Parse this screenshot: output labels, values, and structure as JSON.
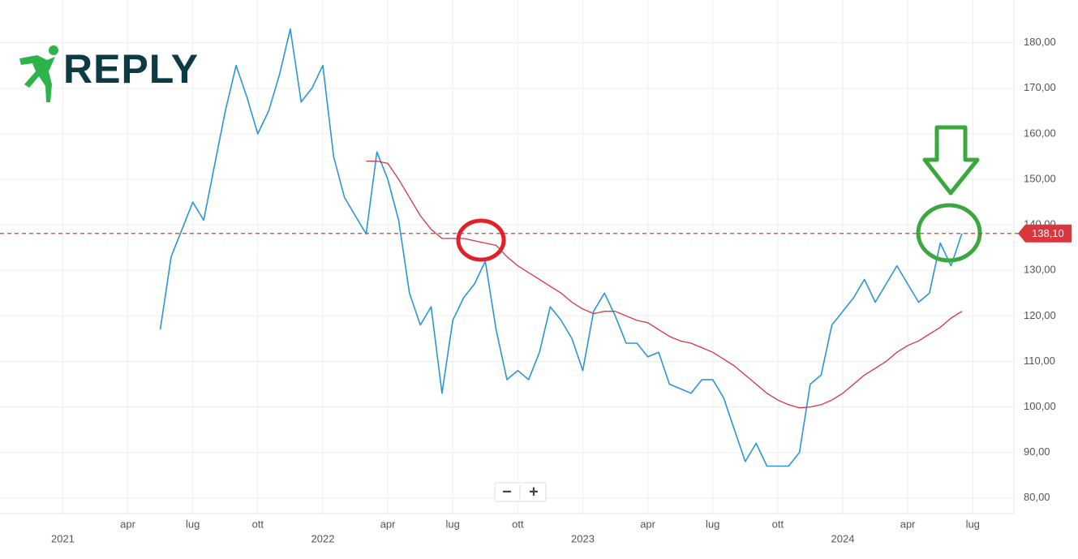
{
  "logo": "REPLY",
  "zoom_controls": [
    "−",
    "+"
  ],
  "chart_data": {
    "type": "line",
    "x": [
      4.5,
      5,
      5.5,
      6,
      6.5,
      7,
      7.5,
      8,
      8.5,
      9,
      9.5,
      10,
      10.5,
      11,
      11.5,
      12,
      12.5,
      13,
      13.5,
      14,
      14.5,
      15,
      15.5,
      16,
      16.5,
      17,
      17.5,
      18,
      18.5,
      19,
      19.5,
      20,
      20.5,
      21,
      21.5,
      22,
      22.5,
      23,
      23.5,
      24,
      24.5,
      25,
      25.5,
      26,
      26.5,
      27,
      27.5,
      28,
      28.5,
      29,
      29.5,
      30,
      30.5,
      31,
      31.5,
      32,
      32.5,
      33,
      33.5,
      34,
      34.5,
      35,
      35.5,
      36,
      36.5,
      37,
      37.5,
      38,
      38.5,
      39,
      39.5,
      40,
      40.5,
      41,
      41.5
    ],
    "series": [
      {
        "color": "#2b95d6",
        "values": [
          117,
          133,
          139,
          145,
          141,
          153,
          165,
          175,
          168,
          160,
          165,
          173,
          183,
          167,
          170,
          175,
          155,
          146,
          142,
          138,
          156,
          150,
          141,
          125,
          118,
          122,
          103,
          119,
          124,
          127,
          132,
          117,
          106,
          108,
          106,
          112,
          122,
          119,
          115,
          108,
          121,
          125,
          120,
          114,
          114,
          111,
          112,
          105,
          104,
          103,
          106,
          106,
          102,
          95,
          88,
          92,
          87,
          87,
          87,
          90,
          105,
          107,
          118,
          121,
          124,
          128,
          123,
          127,
          131,
          127,
          123,
          125,
          136,
          131,
          138.1
        ]
      },
      {
        "color": "#d9343f",
        "values": [
          null,
          null,
          null,
          null,
          null,
          null,
          null,
          null,
          null,
          null,
          null,
          null,
          null,
          null,
          null,
          null,
          null,
          null,
          null,
          154,
          154,
          153.5,
          150,
          146,
          142,
          139,
          137,
          137,
          137,
          136.5,
          136,
          135.5,
          133,
          131,
          129.5,
          128,
          126.5,
          125,
          123,
          121.5,
          120.5,
          121,
          121,
          120,
          119,
          118.5,
          117,
          115.5,
          114.5,
          114,
          113,
          112,
          110.5,
          109,
          107,
          105,
          103,
          101.5,
          100.5,
          99.8,
          100,
          100.5,
          101.5,
          103,
          105,
          107,
          108.5,
          110,
          112,
          113.5,
          114.5,
          116,
          117.5,
          119.5,
          121
        ]
      }
    ],
    "last_price": {
      "value": 138.1,
      "label": "138,10",
      "color": "#d9363e"
    },
    "xlim": [
      -2.9,
      43.9
    ],
    "xticks": [
      {
        "value": 3,
        "label": "apr"
      },
      {
        "value": 6,
        "label": "lug"
      },
      {
        "value": 9,
        "label": "ott"
      },
      {
        "value": 15,
        "label": "apr"
      },
      {
        "value": 18,
        "label": "lug"
      },
      {
        "value": 21,
        "label": "ott"
      },
      {
        "value": 27,
        "label": "apr"
      },
      {
        "value": 30,
        "label": "lug"
      },
      {
        "value": 33,
        "label": "ott"
      },
      {
        "value": 39,
        "label": "apr"
      },
      {
        "value": 42,
        "label": "lug"
      }
    ],
    "xticks_major": [
      {
        "value": 0,
        "label": "2021"
      },
      {
        "value": 12,
        "label": "2022"
      },
      {
        "value": 24,
        "label": "2023"
      },
      {
        "value": 36,
        "label": "2024"
      }
    ],
    "ylim": [
      78,
      186
    ],
    "yticks": [
      {
        "value": 80,
        "label": "80,00"
      },
      {
        "value": 90,
        "label": "90,00"
      },
      {
        "value": 100,
        "label": "100,00"
      },
      {
        "value": 110,
        "label": "110,00"
      },
      {
        "value": 120,
        "label": "120,00"
      },
      {
        "value": 130,
        "label": "130,00"
      },
      {
        "value": 140,
        "label": "140,00"
      },
      {
        "value": 150,
        "label": "150,00"
      },
      {
        "value": 160,
        "label": "160,00"
      },
      {
        "value": 170,
        "label": "170,00"
      },
      {
        "value": 180,
        "label": "180,00"
      }
    ],
    "grid": true
  }
}
